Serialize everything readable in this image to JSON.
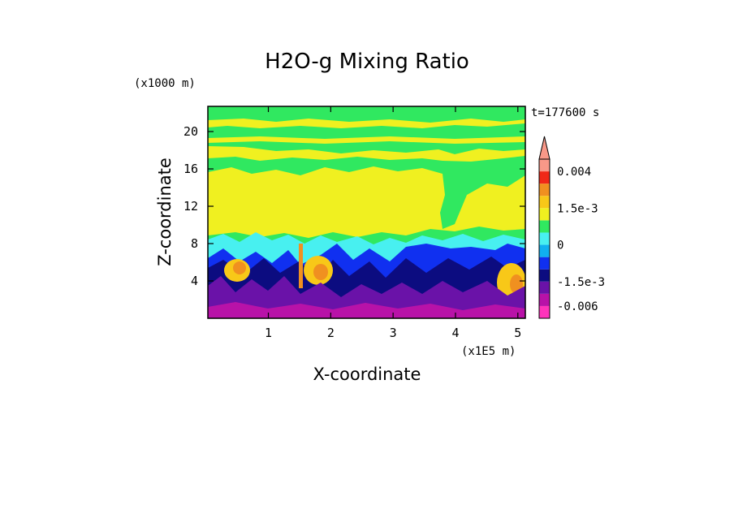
{
  "chart_data": {
    "type": "heatmap",
    "title": "H2O-g Mixing Ratio",
    "time_label": "t=177600 s",
    "xlabel": "X-coordinate",
    "ylabel": "Z-coordinate",
    "x_multiplier": "(x1E5 m)",
    "y_multiplier": "(x1000 m)",
    "x_ticks": [
      "1",
      "2",
      "3",
      "4",
      "5"
    ],
    "x_tick_values": [
      1,
      2,
      3,
      4,
      5
    ],
    "y_ticks": [
      "4",
      "8",
      "12",
      "16",
      "20"
    ],
    "y_tick_values": [
      4,
      8,
      12,
      16,
      20
    ],
    "xlim": [
      0.03,
      5.12
    ],
    "ylim": [
      0,
      22.7
    ],
    "colorbar": {
      "labels": [
        "0.004",
        "1.5e-3",
        "0",
        "-1.5e-3",
        "-0.006"
      ],
      "label_values": [
        0.004,
        0.0015,
        0,
        -0.0015,
        -0.006
      ],
      "levels": [
        -0.009,
        -0.006,
        -0.003,
        -0.0015,
        -0.001,
        -0.0005,
        0,
        0.0005,
        0.001,
        0.0015,
        0.002,
        0.003,
        0.004
      ],
      "colors": [
        "#ff33bb",
        "#b812a8",
        "#6a12a8",
        "#0c0c80",
        "#1030f0",
        "#10b0f0",
        "#48f0f0",
        "#30e860",
        "#f0f020",
        "#f8c818",
        "#f09020",
        "#f02818",
        "#f89888"
      ]
    }
  }
}
